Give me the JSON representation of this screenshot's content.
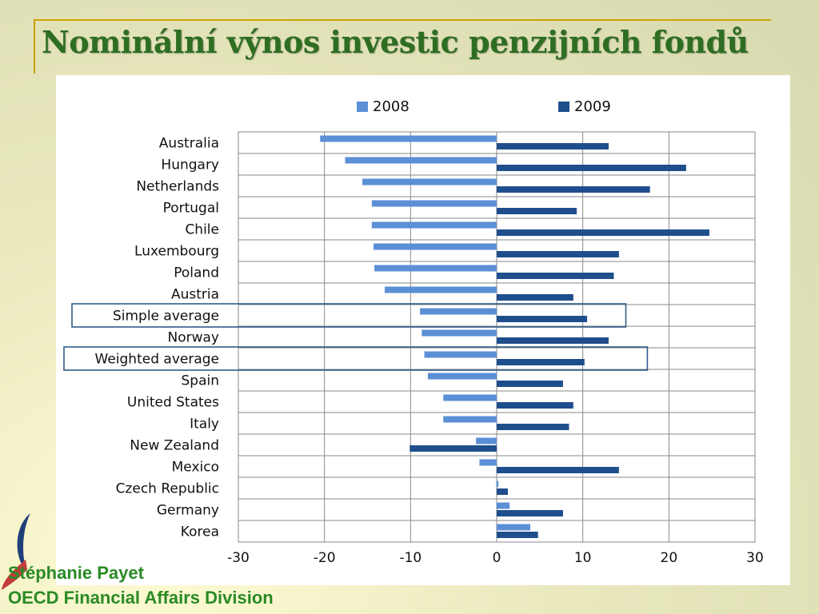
{
  "slide": {
    "title": "Nominální výnos investic penzijních fondů",
    "author": "Stéphanie Payet",
    "division": "OECD Financial Affairs Division"
  },
  "colors": {
    "series_2008": "#5b8fd6",
    "series_2009": "#1f4e8c",
    "title": "#2e6e23",
    "footer_text": "#2a8a26",
    "accent_line": "#c9a400",
    "highlight_box": "#2f5d8a"
  },
  "chart_data": {
    "type": "bar",
    "orientation": "horizontal",
    "title": "",
    "xlabel": "",
    "ylabel": "",
    "xlim": [
      -30,
      30
    ],
    "xticks": [
      -30,
      -20,
      -10,
      0,
      10,
      20,
      30
    ],
    "grid": true,
    "legend": "top",
    "highlighted_categories": [
      "Simple average",
      "Weighted average"
    ],
    "categories": [
      "Australia",
      "Hungary",
      "Netherlands",
      "Portugal",
      "Chile",
      "Luxembourg",
      "Poland",
      "Austria",
      "Simple average",
      "Norway",
      "Weighted average",
      "Spain",
      "United States",
      "Italy",
      "New Zealand",
      "Mexico",
      "Czech Republic",
      "Germany",
      "Korea"
    ],
    "series": [
      {
        "name": "2008",
        "values": [
          -20.5,
          -17.6,
          -15.6,
          -14.5,
          -14.5,
          -14.3,
          -14.2,
          -13.0,
          -8.9,
          -8.7,
          -8.4,
          -8.0,
          -6.2,
          -6.2,
          -2.4,
          -2.0,
          0.2,
          1.5,
          3.9
        ]
      },
      {
        "name": "2009",
        "values": [
          13.0,
          22.0,
          17.8,
          9.3,
          24.7,
          14.2,
          13.6,
          8.9,
          10.5,
          13.0,
          10.2,
          7.7,
          8.9,
          8.4,
          -10.1,
          14.2,
          1.3,
          7.7,
          4.8
        ]
      }
    ]
  }
}
